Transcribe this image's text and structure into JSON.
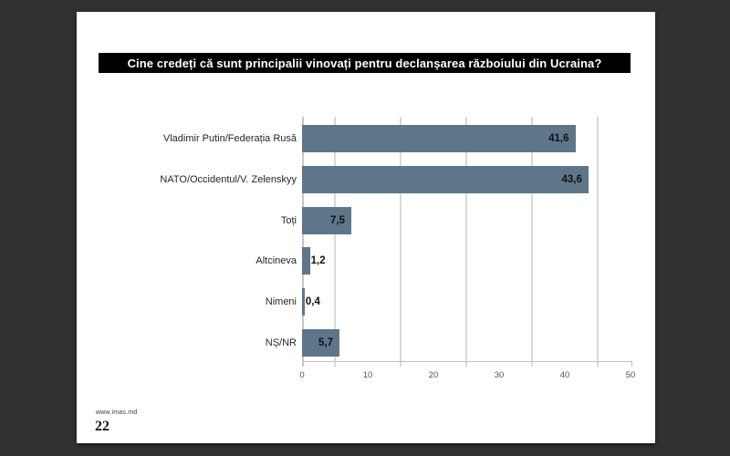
{
  "page": {
    "background_color": "#313131",
    "slide_background": "#ffffff"
  },
  "title": {
    "text": "Cine credeți că sunt principalii vinovați pentru declanșarea războiului din Ucraina?",
    "background": "#000000",
    "text_color": "#ffffff"
  },
  "chart_data": {
    "type": "bar",
    "orientation": "horizontal",
    "title": "Cine credeți că sunt principalii vinovați pentru declanșarea războiului din Ucraina?",
    "categories": [
      "Vladimir Putin/Federația Rusă",
      "NATO/Occidentul/V. Zelenskyy",
      "Toți",
      "Altcineva",
      "Nimeni",
      "NȘ/NR"
    ],
    "values": [
      41.6,
      43.6,
      7.5,
      1.2,
      0.4,
      5.7
    ],
    "value_labels": [
      "41,6",
      "43,6",
      "7,5",
      "1,2",
      "0,4",
      "5,7"
    ],
    "xlim": [
      0,
      50
    ],
    "x_ticks": [
      0,
      10,
      20,
      30,
      40,
      50
    ],
    "gridlines_at": [
      5,
      15,
      25,
      35,
      45
    ],
    "grid": "vertical",
    "legend_position": "none",
    "bar_color": "#5e7689",
    "gridline_color": "#d9d9d9",
    "axis_color": "#bfbfbf",
    "value_label_color": "#111111",
    "category_label_color": "#262626",
    "tick_label_color": "#555555"
  },
  "footer": {
    "website": "www.imas.md",
    "page_number": "22"
  }
}
